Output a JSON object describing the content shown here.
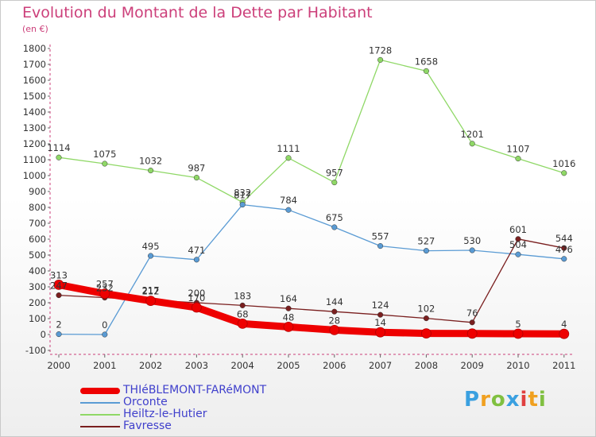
{
  "title": "Evolution du Montant de la Dette par Habitant",
  "unit": "(en €)",
  "logo": "Proxiti",
  "chart_data": {
    "type": "line",
    "title": "Evolution du Montant de la Dette par Habitant",
    "ylabel": "(en €)",
    "x": [
      "2000",
      "2001",
      "2002",
      "2003",
      "2004",
      "2005",
      "2006",
      "2007",
      "2008",
      "2009",
      "2010",
      "2011"
    ],
    "ylim": [
      -100,
      1800
    ],
    "yticks": [
      "-100",
      "0",
      "100",
      "200",
      "300",
      "400",
      "500",
      "600",
      "700",
      "800",
      "900",
      "1000",
      "1100",
      "1200",
      "1300",
      "1400",
      "1500",
      "1600",
      "1700",
      "1800"
    ],
    "grid": false,
    "legend": "bottom-left",
    "series": [
      {
        "name": "THIéBLEMONT-FARéMONT",
        "color": "#ee0000",
        "values": [
          313,
          257,
          212,
          170,
          68,
          48,
          28,
          14,
          7,
          6,
          5,
          4
        ],
        "labels": [
          "313",
          "257",
          "212",
          "170",
          "68",
          "48",
          "28",
          "14",
          "",
          "",
          "5",
          "4"
        ]
      },
      {
        "name": "Orconte",
        "color": "#5a9bd4",
        "values": [
          2,
          0,
          495,
          471,
          817,
          784,
          675,
          557,
          527,
          530,
          504,
          476
        ],
        "labels": [
          "2",
          "0",
          "495",
          "471",
          "817",
          "784",
          "675",
          "557",
          "527",
          "530",
          "504",
          "476"
        ]
      },
      {
        "name": "Heiltz-le-Hutier",
        "color": "#8fd866",
        "values": [
          1114,
          1075,
          1032,
          987,
          832,
          1111,
          957,
          1728,
          1658,
          1201,
          1107,
          1016
        ],
        "labels": [
          "1114",
          "1075",
          "1032",
          "987",
          "832",
          "1111",
          "957",
          "1728",
          "1658",
          "1201",
          "1107",
          "1016"
        ]
      },
      {
        "name": "Favresse",
        "color": "#7a1f1f",
        "values": [
          247,
          232,
          217,
          200,
          183,
          164,
          144,
          124,
          102,
          76,
          601,
          544
        ],
        "labels": [
          "247",
          "232",
          "217",
          "200",
          "183",
          "164",
          "144",
          "124",
          "102",
          "76",
          "601",
          "544"
        ]
      }
    ]
  }
}
